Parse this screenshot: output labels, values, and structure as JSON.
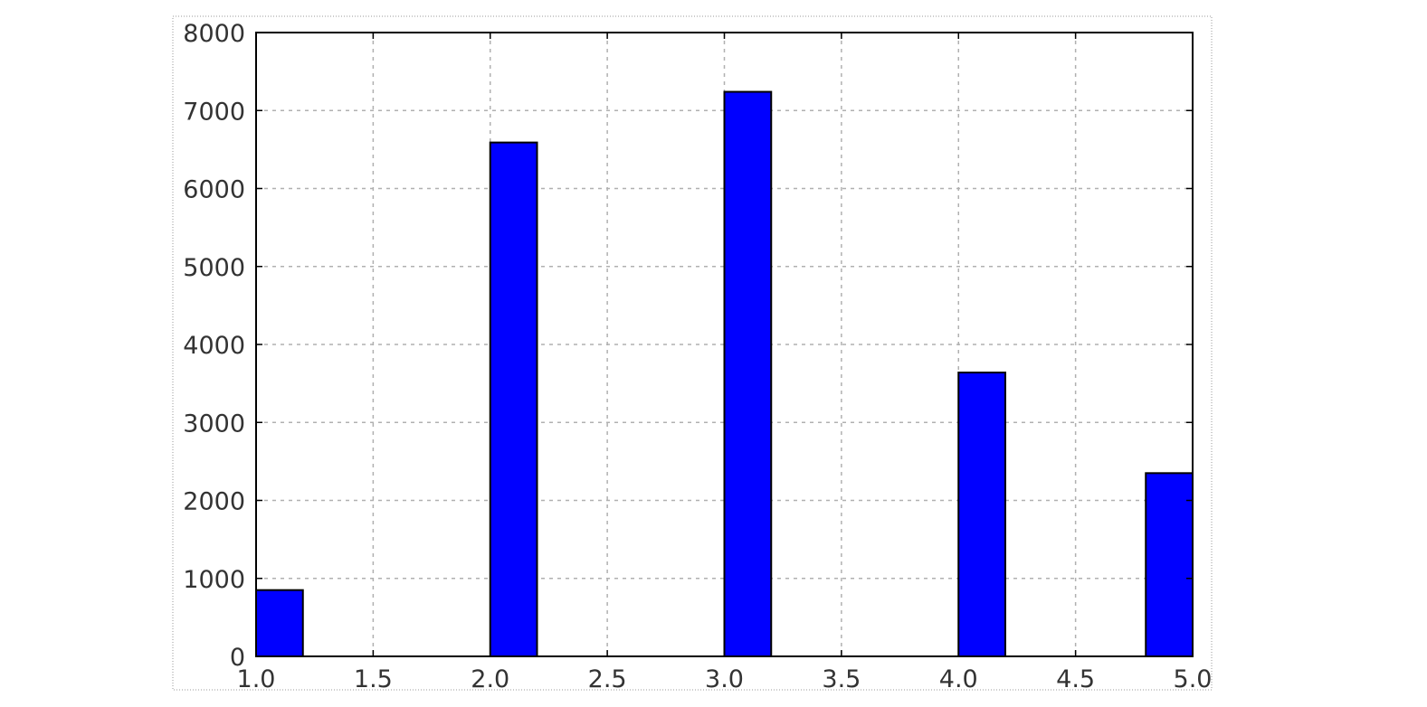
{
  "chart_data": {
    "type": "bar",
    "title": "",
    "xlabel": "",
    "ylabel": "",
    "xlim": [
      1.0,
      5.0
    ],
    "ylim": [
      0,
      8000
    ],
    "grid": true,
    "legend": "none",
    "xticks": [
      1.0,
      1.5,
      2.0,
      2.5,
      3.0,
      3.5,
      4.0,
      4.5,
      5.0
    ],
    "xtick_labels": [
      "1.0",
      "1.5",
      "2.0",
      "2.5",
      "3.0",
      "3.5",
      "4.0",
      "4.5",
      "5.0"
    ],
    "yticks": [
      0,
      1000,
      2000,
      3000,
      4000,
      5000,
      6000,
      7000,
      8000
    ],
    "ytick_labels": [
      "0",
      "1000",
      "2000",
      "3000",
      "4000",
      "5000",
      "6000",
      "7000",
      "8000"
    ],
    "bars": [
      {
        "x_start": 1.0,
        "x_end": 1.2,
        "value": 850
      },
      {
        "x_start": 2.0,
        "x_end": 2.2,
        "value": 6590
      },
      {
        "x_start": 3.0,
        "x_end": 3.2,
        "value": 7240
      },
      {
        "x_start": 4.0,
        "x_end": 4.2,
        "value": 3640
      },
      {
        "x_start": 4.8,
        "x_end": 5.0,
        "value": 2350
      }
    ],
    "colors": {
      "bar": "#0000ff",
      "edge": "#000000",
      "grid": "#b0b0b0",
      "tick_text": "#333333"
    }
  }
}
